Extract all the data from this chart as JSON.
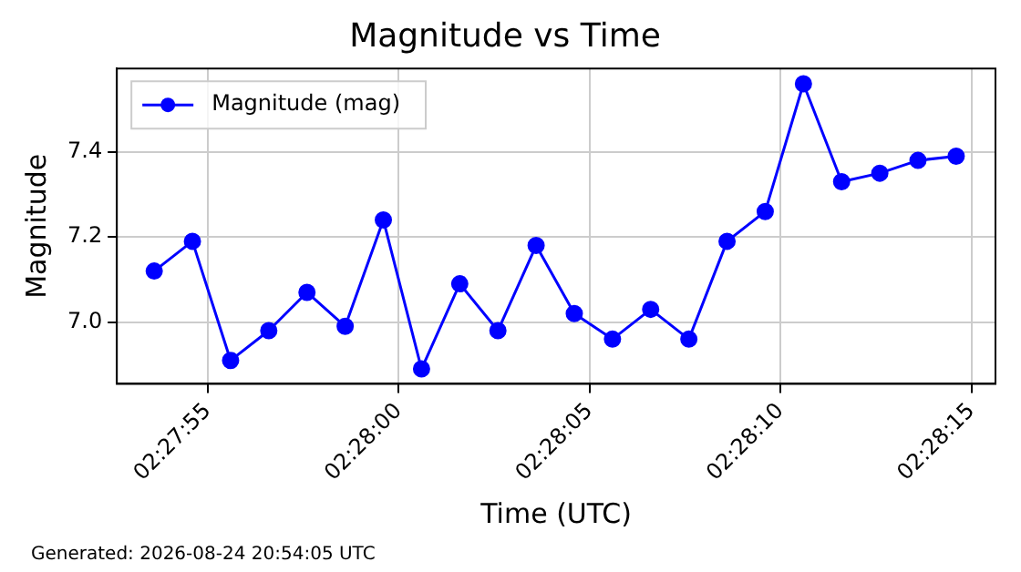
{
  "chart_data": {
    "type": "line",
    "title": "Magnitude vs Time",
    "xlabel": "Time (UTC)",
    "ylabel": "Magnitude",
    "x": [
      2.4648889,
      2.4651667,
      2.4654444,
      2.4657222,
      2.466,
      2.4662778,
      2.4665556,
      2.4668333,
      2.4671111,
      2.4673889,
      2.4676667,
      2.4679444,
      2.4682222,
      2.4685,
      2.4687778,
      2.4690556,
      2.4693333,
      2.4696111,
      2.4698889,
      2.4701667,
      2.4704444,
      2.4707222
    ],
    "series": [
      {
        "name": "Magnitude (mag)",
        "color": "#0000ff",
        "values": [
          7.12,
          7.19,
          6.91,
          6.98,
          7.07,
          6.99,
          7.24,
          6.89,
          7.09,
          6.98,
          7.18,
          7.02,
          6.96,
          7.03,
          6.96,
          7.19,
          7.26,
          7.56,
          7.33,
          7.35,
          7.38,
          7.39
        ]
      }
    ],
    "xlim": [
      2.464617,
      2.471008
    ],
    "xticks": [
      {
        "value": 2.4652778,
        "label": "02:27:55"
      },
      {
        "value": 2.4666667,
        "label": "02:28:00"
      },
      {
        "value": 2.4680556,
        "label": "02:28:05"
      },
      {
        "value": 2.4694444,
        "label": "02:28:10"
      },
      {
        "value": 2.4708333,
        "label": "02:28:15"
      }
    ],
    "ylim": [
      6.855,
      7.596
    ],
    "yticks": [
      {
        "value": 7.0,
        "label": "7.0"
      },
      7.2,
      7.4
    ],
    "grid": true,
    "legend": "top left",
    "marker": "circle",
    "line_style": "solid",
    "annotations": [
      "Generated: 2026-08-24 20:54:05 UTC"
    ]
  }
}
